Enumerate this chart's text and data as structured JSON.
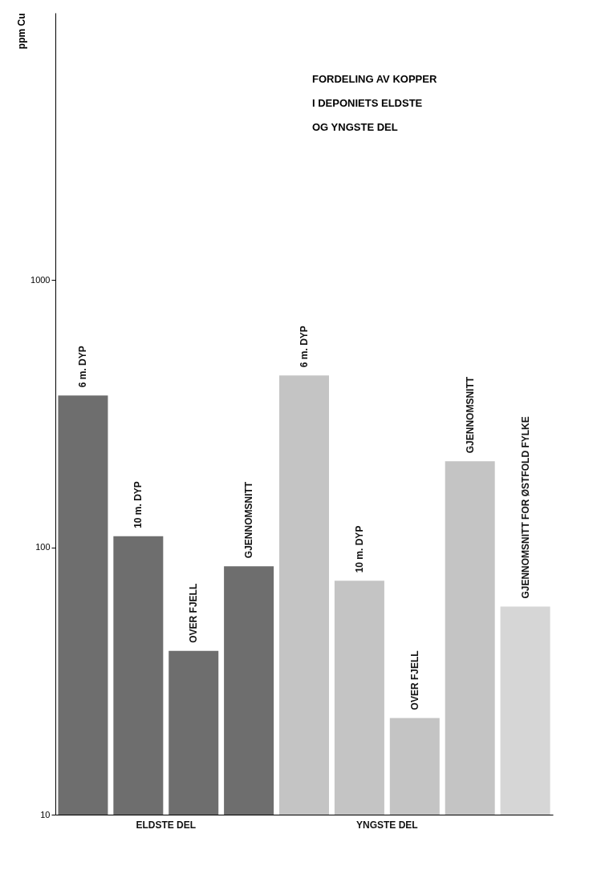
{
  "chart_data": {
    "type": "bar",
    "title": "FORDELING AV KOPPER\nI DEPONIETS ELDSTE\nOG YNGSTE DEL",
    "ylabel": "ppm Cu",
    "categories": [
      "6 m. DYP",
      "10 m. DYP",
      "OVER FJELL",
      "GJENNOMSNITT",
      "6 m. DYP",
      "10 m. DYP",
      "OVER FJELL",
      "GJENNOMSNITT",
      "GJENNOMSNITT FOR ØSTFOLD FYLKE"
    ],
    "series": [
      {
        "name": "ELDSTE DEL",
        "color": "#6e6e6e",
        "values": [
          370,
          110,
          41,
          85,
          null,
          null,
          null,
          null,
          null
        ]
      },
      {
        "name": "YNGSTE DEL",
        "color": "#c4c4c4",
        "values": [
          null,
          null,
          null,
          null,
          440,
          75,
          23,
          210,
          null
        ]
      },
      {
        "color": "#d6d6d6",
        "values": [
          null,
          null,
          null,
          null,
          null,
          null,
          null,
          null,
          60
        ]
      }
    ],
    "log": true,
    "ylim": [
      10,
      10000
    ],
    "yticks": [
      10,
      100,
      1000
    ],
    "grid": false
  }
}
